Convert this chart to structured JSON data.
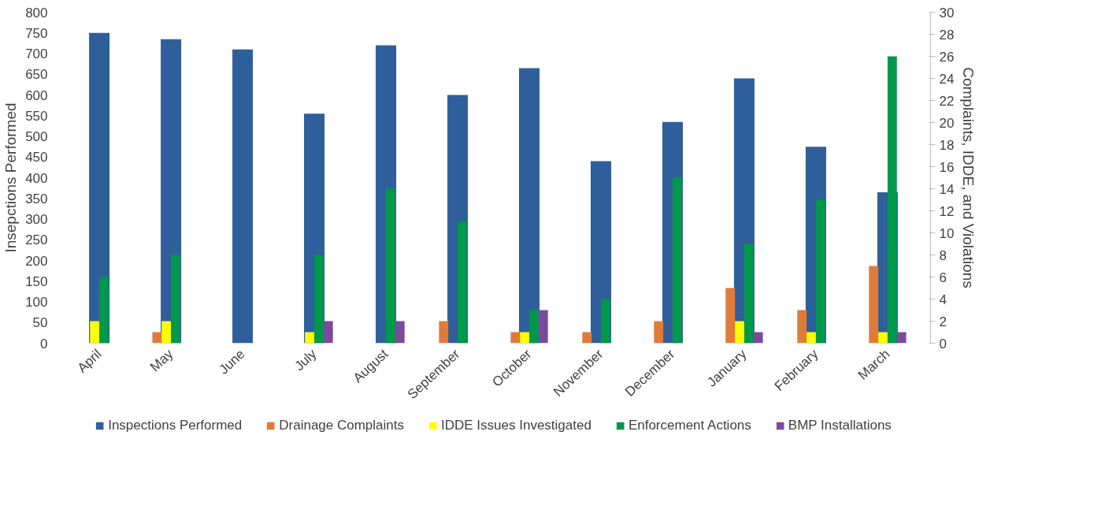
{
  "chart_data": {
    "type": "bar",
    "categories": [
      "April",
      "May",
      "June",
      "July",
      "August",
      "September",
      "October",
      "November",
      "December",
      "January",
      "February",
      "March"
    ],
    "ylabel": "Insepctions Performed",
    "y2label": "Complaints, IDDE, and Violations",
    "ylim": [
      0,
      800
    ],
    "yticks": [
      0,
      50,
      100,
      150,
      200,
      250,
      300,
      350,
      400,
      450,
      500,
      550,
      600,
      650,
      700,
      750,
      800
    ],
    "y2lim": [
      0,
      30
    ],
    "y2ticks": [
      0,
      2,
      4,
      6,
      8,
      10,
      12,
      14,
      16,
      18,
      20,
      22,
      24,
      26,
      28,
      30
    ],
    "grid": false,
    "legend": "bottom",
    "series": [
      {
        "name": "Inspections Performed",
        "color": "#2e5f9a",
        "values": [
          750,
          735,
          710,
          555,
          720,
          600,
          665,
          440,
          535,
          640,
          475,
          365
        ]
      },
      {
        "name": "Drainage Complaints",
        "color": "#e07b39",
        "axis": "y2",
        "values": [
          0,
          1,
          0,
          0,
          0,
          2,
          1,
          1,
          2,
          5,
          3,
          7
        ]
      },
      {
        "name": "IDDE Issues Investigated",
        "color": "#ffff00",
        "axis": "y2",
        "values": [
          2,
          2,
          0,
          1,
          0,
          0,
          1,
          0,
          0,
          2,
          1,
          1
        ]
      },
      {
        "name": "Enforcement Actions",
        "color": "#00994c",
        "axis": "y2",
        "values": [
          6,
          8,
          0,
          8,
          14,
          11,
          3,
          4,
          15,
          9,
          13,
          26
        ]
      },
      {
        "name": "BMP Installations",
        "color": "#7b4a9b",
        "axis": "y2",
        "values": [
          0,
          0,
          0,
          2,
          2,
          0,
          3,
          0,
          0,
          1,
          0,
          1
        ]
      }
    ]
  }
}
